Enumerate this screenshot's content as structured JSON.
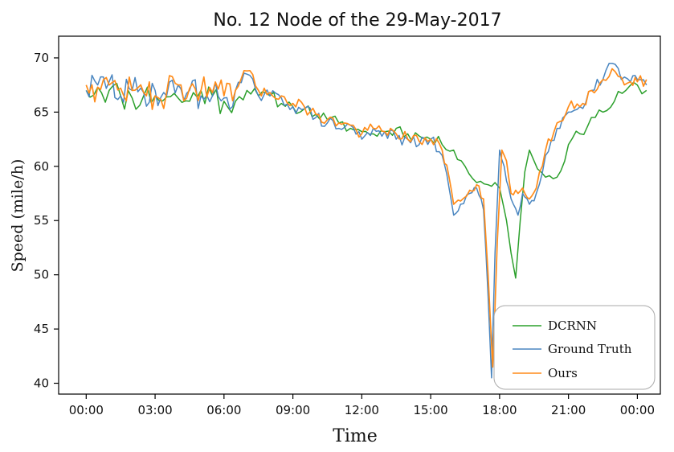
{
  "chart_data": {
    "type": "line",
    "title": "No. 12 Node of the 29-May-2017",
    "xlabel": "Time",
    "ylabel": "Speed (mile/h)",
    "x_ticks": [
      "00:00",
      "03:00",
      "06:00",
      "09:00",
      "12:00",
      "15:00",
      "18:00",
      "21:00",
      "00:00"
    ],
    "x_tick_hours": [
      0,
      3,
      6,
      9,
      12,
      15,
      18,
      21,
      24
    ],
    "xlim": [
      -1.2,
      25.0
    ],
    "ylim": [
      39.0,
      72.0
    ],
    "y_ticks": [
      40,
      45,
      50,
      55,
      60,
      65,
      70
    ],
    "grid": false,
    "legend_position": "lower-right",
    "series": [
      {
        "name": "DCRNN",
        "color": "#2ca02c",
        "points": [
          [
            0.0,
            67.0
          ],
          [
            0.5,
            67.3
          ],
          [
            1.0,
            67.0
          ],
          [
            1.5,
            66.5
          ],
          [
            2.0,
            66.3
          ],
          [
            2.5,
            66.5
          ],
          [
            3.0,
            66.5
          ],
          [
            3.5,
            66.4
          ],
          [
            4.0,
            66.3
          ],
          [
            4.5,
            66.0
          ],
          [
            5.0,
            67.0
          ],
          [
            5.5,
            66.5
          ],
          [
            6.0,
            66.0
          ],
          [
            6.5,
            66.0
          ],
          [
            7.0,
            67.0
          ],
          [
            7.5,
            66.5
          ],
          [
            8.0,
            66.5
          ],
          [
            8.5,
            65.8
          ],
          [
            9.0,
            65.5
          ],
          [
            9.5,
            65.3
          ],
          [
            10.0,
            64.8
          ],
          [
            10.5,
            64.3
          ],
          [
            11.0,
            64.0
          ],
          [
            11.5,
            63.5
          ],
          [
            12.0,
            63.2
          ],
          [
            12.5,
            63.0
          ],
          [
            13.0,
            63.2
          ],
          [
            13.5,
            63.5
          ],
          [
            14.0,
            63.0
          ],
          [
            14.5,
            62.8
          ],
          [
            15.0,
            62.5
          ],
          [
            15.5,
            62.0
          ],
          [
            16.0,
            61.5
          ],
          [
            16.5,
            60.0
          ],
          [
            17.0,
            58.5
          ],
          [
            17.5,
            58.3
          ],
          [
            17.8,
            58.5
          ],
          [
            18.0,
            58.0
          ],
          [
            18.3,
            55.0
          ],
          [
            18.5,
            52.0
          ],
          [
            18.7,
            49.7
          ],
          [
            18.9,
            55.0
          ],
          [
            19.1,
            59.5
          ],
          [
            19.3,
            61.5
          ],
          [
            19.5,
            60.5
          ],
          [
            19.8,
            59.5
          ],
          [
            20.0,
            59.0
          ],
          [
            20.5,
            59.0
          ],
          [
            21.0,
            62.0
          ],
          [
            21.5,
            63.0
          ],
          [
            22.0,
            64.5
          ],
          [
            22.5,
            65.0
          ],
          [
            23.0,
            66.0
          ],
          [
            23.5,
            67.0
          ],
          [
            24.0,
            67.5
          ],
          [
            24.4,
            67.0
          ]
        ]
      },
      {
        "name": "Ground Truth",
        "color": "#4a86c0",
        "points": [
          [
            0.0,
            67.0
          ],
          [
            0.5,
            67.5
          ],
          [
            1.0,
            67.8
          ],
          [
            1.5,
            66.5
          ],
          [
            2.0,
            67.0
          ],
          [
            2.5,
            66.8
          ],
          [
            3.0,
            67.0
          ],
          [
            3.5,
            66.5
          ],
          [
            4.0,
            67.5
          ],
          [
            4.5,
            67.0
          ],
          [
            5.0,
            66.5
          ],
          [
            5.5,
            66.5
          ],
          [
            6.0,
            66.3
          ],
          [
            6.5,
            67.0
          ],
          [
            7.0,
            68.5
          ],
          [
            7.5,
            66.5
          ],
          [
            8.0,
            66.5
          ],
          [
            8.5,
            66.3
          ],
          [
            9.0,
            65.5
          ],
          [
            9.5,
            65.3
          ],
          [
            10.0,
            64.5
          ],
          [
            10.5,
            64.0
          ],
          [
            11.0,
            63.5
          ],
          [
            11.5,
            63.8
          ],
          [
            12.0,
            62.5
          ],
          [
            12.5,
            63.5
          ],
          [
            13.0,
            63.2
          ],
          [
            13.5,
            62.5
          ],
          [
            14.0,
            62.5
          ],
          [
            14.5,
            62.0
          ],
          [
            15.0,
            62.5
          ],
          [
            15.5,
            61.0
          ],
          [
            15.8,
            58.0
          ],
          [
            16.0,
            55.5
          ],
          [
            16.3,
            56.5
          ],
          [
            16.7,
            57.5
          ],
          [
            17.0,
            58.0
          ],
          [
            17.3,
            56.0
          ],
          [
            17.5,
            48.0
          ],
          [
            17.65,
            40.5
          ],
          [
            17.8,
            52.0
          ],
          [
            18.0,
            61.5
          ],
          [
            18.2,
            60.0
          ],
          [
            18.5,
            57.0
          ],
          [
            18.8,
            55.5
          ],
          [
            19.0,
            57.5
          ],
          [
            19.3,
            56.5
          ],
          [
            19.6,
            57.5
          ],
          [
            20.0,
            61.0
          ],
          [
            20.5,
            63.5
          ],
          [
            21.0,
            65.0
          ],
          [
            21.5,
            65.5
          ],
          [
            22.0,
            67.0
          ],
          [
            22.5,
            68.0
          ],
          [
            22.9,
            69.5
          ],
          [
            23.3,
            68.0
          ],
          [
            23.7,
            67.8
          ],
          [
            24.0,
            68.0
          ],
          [
            24.4,
            67.5
          ]
        ]
      },
      {
        "name": "Ours",
        "color": "#ff8c1a",
        "points": [
          [
            0.0,
            67.5
          ],
          [
            0.5,
            67.3
          ],
          [
            1.0,
            67.5
          ],
          [
            1.5,
            67.2
          ],
          [
            2.0,
            67.0
          ],
          [
            2.5,
            66.8
          ],
          [
            3.0,
            66.5
          ],
          [
            3.5,
            66.8
          ],
          [
            4.0,
            67.5
          ],
          [
            4.5,
            67.2
          ],
          [
            5.0,
            67.0
          ],
          [
            5.5,
            66.8
          ],
          [
            6.0,
            66.5
          ],
          [
            6.5,
            67.0
          ],
          [
            7.0,
            68.8
          ],
          [
            7.5,
            67.0
          ],
          [
            8.0,
            66.8
          ],
          [
            8.5,
            66.5
          ],
          [
            9.0,
            65.8
          ],
          [
            9.5,
            65.5
          ],
          [
            10.0,
            64.8
          ],
          [
            10.5,
            64.3
          ],
          [
            11.0,
            64.0
          ],
          [
            11.5,
            63.8
          ],
          [
            12.0,
            63.0
          ],
          [
            12.5,
            63.5
          ],
          [
            13.0,
            63.2
          ],
          [
            13.5,
            63.0
          ],
          [
            14.0,
            62.5
          ],
          [
            14.5,
            62.3
          ],
          [
            15.0,
            62.5
          ],
          [
            15.5,
            61.5
          ],
          [
            15.8,
            59.0
          ],
          [
            16.0,
            56.5
          ],
          [
            16.3,
            56.8
          ],
          [
            16.7,
            57.8
          ],
          [
            17.0,
            58.3
          ],
          [
            17.3,
            57.0
          ],
          [
            17.5,
            50.0
          ],
          [
            17.7,
            41.5
          ],
          [
            17.9,
            53.0
          ],
          [
            18.1,
            61.5
          ],
          [
            18.3,
            60.5
          ],
          [
            18.5,
            57.5
          ],
          [
            18.8,
            57.5
          ],
          [
            19.0,
            58.0
          ],
          [
            19.3,
            57.0
          ],
          [
            19.6,
            58.0
          ],
          [
            20.0,
            61.5
          ],
          [
            20.5,
            64.0
          ],
          [
            21.0,
            65.5
          ],
          [
            21.5,
            65.5
          ],
          [
            22.0,
            67.0
          ],
          [
            22.5,
            68.0
          ],
          [
            22.9,
            69.0
          ],
          [
            23.3,
            68.2
          ],
          [
            23.7,
            67.8
          ],
          [
            24.0,
            67.8
          ],
          [
            24.4,
            68.0
          ]
        ]
      }
    ]
  }
}
